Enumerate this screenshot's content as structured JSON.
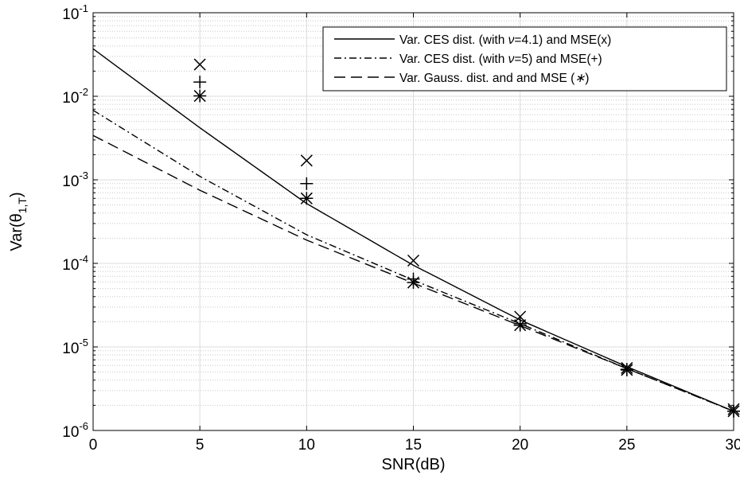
{
  "chart_data": {
    "type": "line",
    "xlabel": "SNR(dB)",
    "ylabel": "Var(θ",
    "ylabel_sub": "1,T",
    "ylabel_close": ")",
    "xlim": [
      0,
      30
    ],
    "ylim": [
      1e-06,
      0.1
    ],
    "yscale": "log",
    "grid": true,
    "minor_grid": true,
    "legend_position": "top-right",
    "x_ticks": [
      {
        "value": 0,
        "label": "0"
      },
      {
        "value": 5,
        "label": "5"
      },
      {
        "value": 10,
        "label": "10"
      },
      {
        "value": 15,
        "label": "15"
      },
      {
        "value": 20,
        "label": "20"
      },
      {
        "value": 25,
        "label": "25"
      },
      {
        "value": 30,
        "label": "30"
      }
    ],
    "y_ticks": [
      {
        "value": 1e-06,
        "base": "10",
        "exp": "-6"
      },
      {
        "value": 1e-05,
        "base": "10",
        "exp": "-5"
      },
      {
        "value": 0.0001,
        "base": "10",
        "exp": "-4"
      },
      {
        "value": 0.001,
        "base": "10",
        "exp": "-3"
      },
      {
        "value": 0.01,
        "base": "10",
        "exp": "-2"
      },
      {
        "value": 0.1,
        "base": "10",
        "exp": "-1"
      }
    ],
    "series": [
      {
        "name": "Var. CES dist. (with ν=4.1) and MSE(x)",
        "legend_parts": [
          "Var. CES dist. (with ",
          "ν",
          "=4.1) and MSE(x)"
        ],
        "line_style": "solid",
        "marker": "x",
        "x": [
          0,
          5,
          10,
          15,
          20,
          25,
          30
        ],
        "values": [
          0.037,
          0.0042,
          0.00052,
          9.5e-05,
          2.1e-05,
          5.8e-06,
          1.7e-06
        ],
        "mse_x": [
          5,
          10,
          15,
          20,
          25,
          30
        ],
        "mse_values": [
          0.024,
          0.0017,
          0.000108,
          2.3e-05,
          5.6e-06,
          1.8e-06
        ]
      },
      {
        "name": "Var. CES dist.  (with ν=5) and MSE(+)",
        "legend_parts": [
          "Var. CES dist.  (with ",
          "ν",
          "=5) and MSE(+)"
        ],
        "line_style": "dashdot",
        "marker": "+",
        "x": [
          0,
          5,
          10,
          15,
          20,
          25,
          30
        ],
        "values": [
          0.0068,
          0.0011,
          0.00022,
          6.3e-05,
          1.9e-05,
          5.5e-06,
          1.7e-06
        ],
        "mse_x": [
          5,
          10,
          15,
          20,
          25,
          30
        ],
        "mse_values": [
          0.0148,
          0.0009,
          6.5e-05,
          1.9e-05,
          5.4e-06,
          1.7e-06
        ]
      },
      {
        "name": "Var. Gauss. dist. and and MSE (∗)",
        "legend_parts": [
          "Var. Gauss. dist. and and MSE (",
          "∗",
          ")"
        ],
        "line_style": "dashed",
        "marker": "*",
        "x": [
          0,
          5,
          10,
          15,
          20,
          25,
          30
        ],
        "values": [
          0.0034,
          0.00075,
          0.00019,
          5.8e-05,
          1.8e-05,
          5.5e-06,
          1.7e-06
        ],
        "mse_x": [
          5,
          10,
          15,
          20,
          25,
          30
        ],
        "mse_values": [
          0.0101,
          0.0006,
          5.9e-05,
          1.82e-05,
          5.3e-06,
          1.7e-06
        ]
      }
    ]
  }
}
